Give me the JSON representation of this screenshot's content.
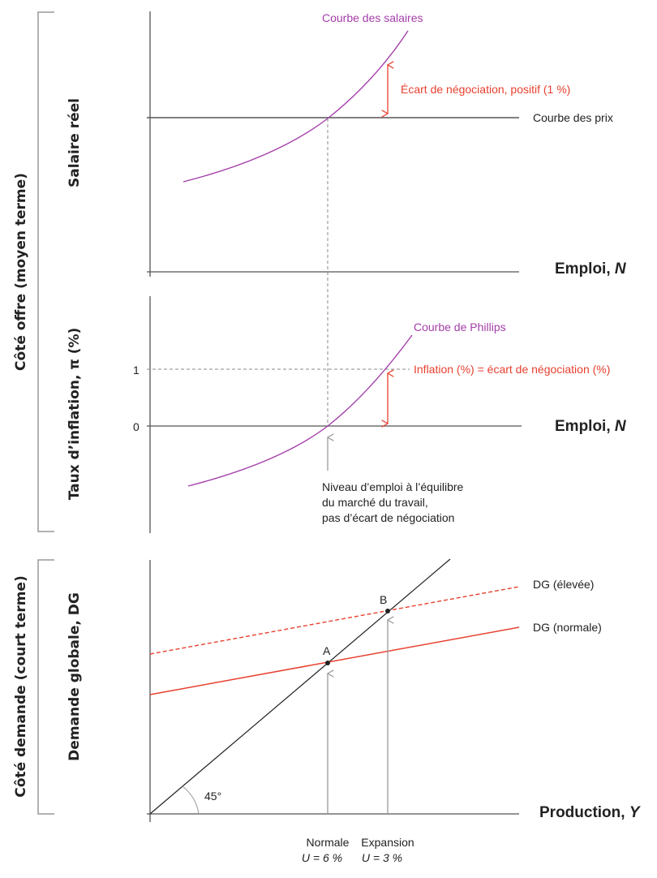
{
  "colors": {
    "wage_curve": "#a43ea9",
    "gap": "#e8402f",
    "axis": "#555555",
    "guide": "#999999"
  },
  "brackets": {
    "supply": "Côté offre (moyen terme)",
    "demand": "Côté demande (court terme)"
  },
  "panel_wage": {
    "ylabel": "Salaire réel",
    "xlabel_main": "Emploi, ",
    "xlabel_var": "N",
    "wage_curve": "Courbe des salaires",
    "price_curve": "Courbe des prix",
    "gap_label": "Écart de négociation, positif (1 %)"
  },
  "panel_phillips": {
    "ylabel": "Taux d’inflation, π (%)",
    "xlabel_main": "Emploi, ",
    "xlabel_var": "N",
    "tick_1": "1",
    "tick_0": "0",
    "curve": "Courbe de Phillips",
    "inflation_label": "Inflation (%) = écart de négociation (%)",
    "note": [
      "Niveau d’emploi à l’équilibre",
      "du marché du travail,",
      "pas d’écart de négociation"
    ]
  },
  "panel_demand": {
    "ylabel": "Demande globale, DG",
    "xlabel_main": "Production, ",
    "xlabel_var": "Y",
    "angle": "45°",
    "point_a": "A",
    "point_b": "B",
    "dg_high": "DG (élevée)",
    "dg_normal": "DG (normale)",
    "normal_label": "Normale",
    "normal_u": "U = 6 %",
    "expansion_label": "Expansion",
    "expansion_u": "U = 3 %"
  }
}
